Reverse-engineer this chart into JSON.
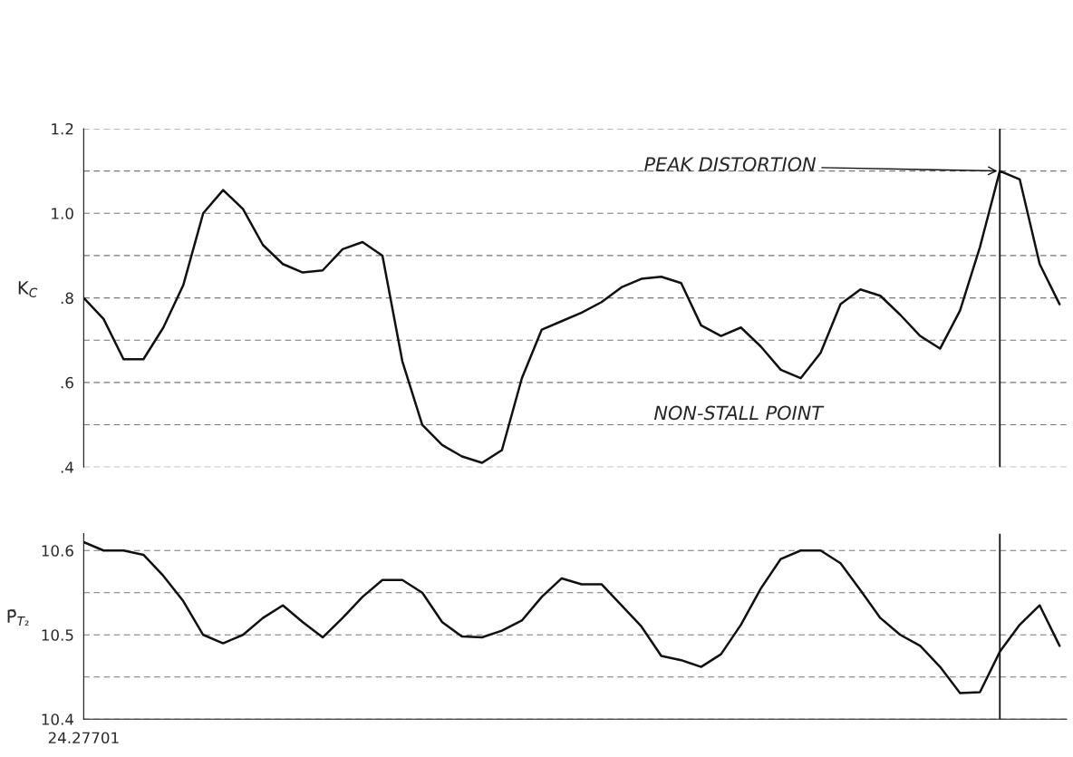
{
  "chart_data": [
    {
      "type": "line",
      "ylabel": "K$_{C}$",
      "categories": [
        null,
        null,
        null,
        null,
        null,
        null,
        null,
        null,
        null,
        null,
        null,
        null,
        null,
        null,
        null,
        null,
        null,
        null,
        null,
        null,
        null,
        null,
        null,
        null,
        null,
        null,
        null,
        null,
        null,
        null,
        null,
        null,
        null,
        null,
        null,
        null,
        null,
        null,
        null,
        null,
        null,
        null,
        null,
        null,
        null,
        null,
        null,
        null,
        null,
        null
      ],
      "series": [
        {
          "color": "#111111",
          "values": [
            0.8,
            0.75,
            0.655,
            0.655,
            0.73,
            0.83,
            1.0,
            1.055,
            1.01,
            0.925,
            0.88,
            0.86,
            0.865,
            0.915,
            0.932,
            0.9,
            0.65,
            0.5,
            0.452,
            0.425,
            0.41,
            0.44,
            0.61,
            0.725,
            0.745,
            0.765,
            0.79,
            0.825,
            0.845,
            0.85,
            0.835,
            0.735,
            0.71,
            0.73,
            0.685,
            0.63,
            0.61,
            0.67,
            0.785,
            0.82,
            0.805,
            0.76,
            0.71,
            0.68,
            0.77,
            0.92,
            1.1,
            1.08,
            0.88,
            0.785
          ]
        }
      ],
      "ylim": [
        0.4,
        1.2
      ],
      "yticks": [
        {
          "value": 0.4,
          "label": ".4"
        },
        {
          "value": 0.5,
          "label": null
        },
        {
          "value": 0.6,
          "label": ".6"
        },
        {
          "value": 0.7,
          "label": null
        },
        {
          "value": 0.8,
          "label": ".8"
        },
        {
          "value": 0.9,
          "label": null
        },
        {
          "value": 1.0,
          "label": "1.0"
        },
        {
          "value": 1.1,
          "label": null
        },
        {
          "value": 1.2,
          "label": "1.2"
        }
      ],
      "grid": "y",
      "tick_labels": "y",
      "line_style": "solid",
      "annotations": [
        "PEAK DISTORTION",
        "NON-STALL POINT"
      ]
    },
    {
      "type": "line",
      "ylabel": "P̄$_{T₂}$",
      "categories": [
        "24.27701",
        null,
        null,
        null,
        null,
        null,
        null,
        null,
        null,
        null,
        null,
        null,
        null,
        null,
        null,
        null,
        null,
        null,
        null,
        null,
        null,
        null,
        null,
        null,
        null,
        null,
        null,
        null,
        null,
        null,
        null,
        null,
        null,
        null,
        null,
        null,
        null,
        null,
        null,
        null,
        null,
        null,
        null,
        null,
        null,
        null,
        null,
        null,
        null,
        null
      ],
      "series": [
        {
          "color": "#111111",
          "values": [
            10.61,
            10.6,
            10.6,
            10.595,
            10.57,
            10.54,
            10.5,
            10.49,
            10.5,
            10.52,
            10.535,
            10.515,
            10.497,
            10.52,
            10.545,
            10.565,
            10.565,
            10.55,
            10.515,
            10.498,
            10.497,
            10.505,
            10.517,
            10.545,
            10.567,
            10.56,
            10.56,
            10.535,
            10.51,
            10.475,
            10.47,
            10.462,
            10.477,
            10.512,
            10.555,
            10.59,
            10.6,
            10.6,
            10.585,
            10.553,
            10.52,
            10.5,
            10.487,
            10.462,
            10.431,
            10.432,
            10.48,
            10.512,
            10.535,
            10.487
          ]
        }
      ],
      "ylim": [
        10.4,
        10.62
      ],
      "yticks": [
        10.4,
        {
          "value": 10.45,
          "label": null
        },
        10.5,
        {
          "value": 10.55,
          "label": null
        },
        10.6
      ],
      "grid": "y",
      "line_style": "solid"
    }
  ]
}
